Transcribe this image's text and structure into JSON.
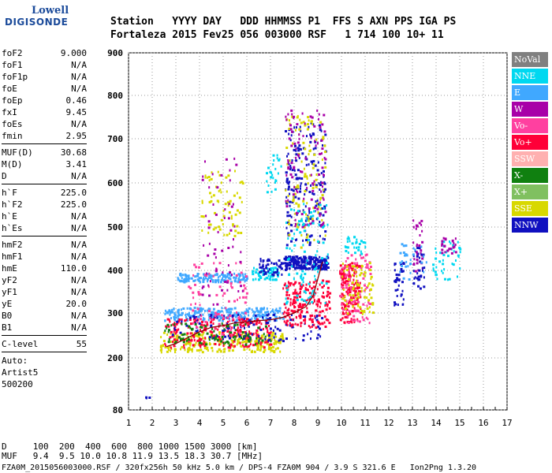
{
  "logo": {
    "line1": "Lowell",
    "line2": "DIGISONDE"
  },
  "header": {
    "labels": "Station   YYYY DAY   DDD HHMMSS P1  FFS S AXN PPS IGA PS",
    "values": "Fortaleza 2015 Fev25 056 003000 RSF   1 714 100 10+ 11"
  },
  "params": [
    {
      "name": "foF2",
      "value": "9.000"
    },
    {
      "name": "foF1",
      "value": "N/A"
    },
    {
      "name": "foF1p",
      "value": "N/A"
    },
    {
      "name": "foE",
      "value": "N/A"
    },
    {
      "name": "foEp",
      "value": "0.46"
    },
    {
      "name": "fxI",
      "value": "9.45"
    },
    {
      "name": "foEs",
      "value": "N/A"
    },
    {
      "name": "fmin",
      "value": "2.95"
    },
    {
      "sep": true
    },
    {
      "name": "MUF(D)",
      "value": "30.68"
    },
    {
      "name": "M(D)",
      "value": "3.41"
    },
    {
      "name": "D",
      "value": "N/A"
    },
    {
      "sep": true
    },
    {
      "name": "h`F",
      "value": "225.0"
    },
    {
      "name": "h`F2",
      "value": "225.0"
    },
    {
      "name": "h`E",
      "value": "N/A"
    },
    {
      "name": "h`Es",
      "value": "N/A"
    },
    {
      "sep": true
    },
    {
      "name": "hmF2",
      "value": "N/A"
    },
    {
      "name": "hmF1",
      "value": "N/A"
    },
    {
      "name": "hmE",
      "value": "110.0"
    },
    {
      "name": "yF2",
      "value": "N/A"
    },
    {
      "name": "yF1",
      "value": "N/A"
    },
    {
      "name": "yE",
      "value": "20.0"
    },
    {
      "name": "B0",
      "value": "N/A"
    },
    {
      "name": "B1",
      "value": "N/A"
    },
    {
      "sep": true
    },
    {
      "name": "C-level",
      "value": "55"
    },
    {
      "sep": true
    }
  ],
  "auto": {
    "label": "Auto:",
    "artist": "Artist5",
    "code": "500200"
  },
  "bottom": {
    "d_line": "D     100  200  400  600  800 1000 1500 3000 [km]",
    "muf_line": "MUF   9.4  9.5 10.0 10.8 11.9 13.5 18.3 30.7 [MHz]",
    "footer": "FZA0M_2015056003000.RSF / 320fx256h 50 kHz 5.0 km / DPS-4 FZA0M 904 / 3.9 S 321.6 E   Ion2Png 1.3.20"
  },
  "legend": [
    {
      "label": "NoVal",
      "color": "#808080"
    },
    {
      "label": "NNE",
      "color": "#00d8f0"
    },
    {
      "label": "E",
      "color": "#40a8ff"
    },
    {
      "label": "W",
      "color": "#a800a8"
    },
    {
      "label": "Vo-",
      "color": "#ff40a0"
    },
    {
      "label": "Vo+",
      "color": "#ff0038"
    },
    {
      "label": "SSW",
      "color": "#ffb0b0"
    },
    {
      "label": "X-",
      "color": "#108010"
    },
    {
      "label": "X+",
      "color": "#80c060"
    },
    {
      "label": "SSE",
      "color": "#d8d800"
    },
    {
      "label": "NNW",
      "color": "#1010c0"
    }
  ],
  "chart_data": {
    "type": "scatter",
    "xlim": [
      1,
      17
    ],
    "ylim": [
      80,
      900
    ],
    "x_ticks": [
      "1",
      "2",
      "3",
      "4",
      "5",
      "6",
      "7",
      "8",
      "9",
      "10",
      "11",
      "12",
      "13",
      "14",
      "15",
      "16",
      "17"
    ],
    "y_ticks": [
      {
        "label": "900",
        "v": 900
      },
      {
        "label": "800",
        "v": 800
      },
      {
        "label": "700",
        "v": 700
      },
      {
        "label": "600",
        "v": 600
      },
      {
        "label": "500",
        "v": 500
      },
      {
        "label": "400",
        "v": 400
      },
      {
        "label": "300",
        "v": 300
      },
      {
        "label": "200",
        "v": 200
      },
      {
        "label": "80",
        "v": 80
      }
    ],
    "grid": "dotted",
    "trace": {
      "name": "autoscaled trace",
      "color": "#8b0000",
      "x": [
        2.6,
        3.0,
        3.5,
        4.0,
        4.5,
        5.0,
        5.5,
        6.0,
        6.5,
        7.0,
        7.5,
        8.0,
        8.5,
        8.8,
        9.0,
        9.2
      ],
      "y": [
        225,
        232,
        245,
        258,
        268,
        272,
        278,
        280,
        283,
        285,
        290,
        300,
        315,
        340,
        380,
        420
      ]
    },
    "clusters": [
      {
        "series": "SSE",
        "x": [
          2.3,
          7.5
        ],
        "y": [
          215,
          260
        ],
        "n": 260
      },
      {
        "series": "E",
        "x": [
          2.5,
          7.5
        ],
        "y": [
          285,
          315
        ],
        "n": 240
      },
      {
        "series": "E",
        "x": [
          3.0,
          6.0
        ],
        "y": [
          375,
          395
        ],
        "n": 150
      },
      {
        "series": "Vo+",
        "x": [
          2.5,
          7.0
        ],
        "y": [
          225,
          290
        ],
        "n": 220
      },
      {
        "series": "NNW",
        "x": [
          2.8,
          9.2
        ],
        "y": [
          240,
          300
        ],
        "n": 120
      },
      {
        "series": "X-",
        "x": [
          2.5,
          7.0
        ],
        "y": [
          230,
          280
        ],
        "n": 90
      },
      {
        "series": "Vo-",
        "x": [
          3.5,
          6.0
        ],
        "y": [
          250,
          420
        ],
        "n": 90
      },
      {
        "series": "SSE",
        "x": [
          4.0,
          5.8
        ],
        "y": [
          480,
          630
        ],
        "n": 70
      },
      {
        "series": "W",
        "x": [
          4.0,
          5.8
        ],
        "y": [
          320,
          660
        ],
        "n": 60
      },
      {
        "series": "NNE",
        "x": [
          6.2,
          7.3
        ],
        "y": [
          380,
          410
        ],
        "n": 70
      },
      {
        "series": "NNW",
        "x": [
          6.5,
          7.6
        ],
        "y": [
          390,
          430
        ],
        "n": 50
      },
      {
        "series": "NNE",
        "x": [
          6.8,
          7.5
        ],
        "y": [
          580,
          670
        ],
        "n": 25
      },
      {
        "series": "NNW",
        "x": [
          7.6,
          9.4
        ],
        "y": [
          405,
          435
        ],
        "n": 220
      },
      {
        "series": "NNW",
        "x": [
          7.6,
          9.3
        ],
        "y": [
          460,
          740
        ],
        "n": 180
      },
      {
        "series": "SSE",
        "x": [
          7.6,
          9.3
        ],
        "y": [
          450,
          760
        ],
        "n": 110
      },
      {
        "series": "W",
        "x": [
          7.6,
          9.3
        ],
        "y": [
          500,
          770
        ],
        "n": 110
      },
      {
        "series": "Vo+",
        "x": [
          7.5,
          9.5
        ],
        "y": [
          270,
          380
        ],
        "n": 200
      },
      {
        "series": "NNE",
        "x": [
          7.6,
          9.4
        ],
        "y": [
          320,
          560
        ],
        "n": 100
      },
      {
        "series": "Vo+",
        "x": [
          9.9,
          10.8
        ],
        "y": [
          280,
          420
        ],
        "n": 160
      },
      {
        "series": "Vo-",
        "x": [
          9.9,
          11.2
        ],
        "y": [
          280,
          440
        ],
        "n": 100
      },
      {
        "series": "SSE",
        "x": [
          10.0,
          11.3
        ],
        "y": [
          300,
          420
        ],
        "n": 80
      },
      {
        "series": "NNE",
        "x": [
          10.1,
          11.0
        ],
        "y": [
          440,
          480
        ],
        "n": 30
      },
      {
        "series": "NNW",
        "x": [
          12.2,
          12.6
        ],
        "y": [
          320,
          420
        ],
        "n": 35
      },
      {
        "series": "W",
        "x": [
          13.0,
          13.4
        ],
        "y": [
          400,
          520
        ],
        "n": 35
      },
      {
        "series": "NNW",
        "x": [
          13.0,
          13.5
        ],
        "y": [
          360,
          460
        ],
        "n": 30
      },
      {
        "series": "NNE",
        "x": [
          13.8,
          15.0
        ],
        "y": [
          380,
          470
        ],
        "n": 45
      },
      {
        "series": "E",
        "x": [
          12.3,
          13.6
        ],
        "y": [
          380,
          470
        ],
        "n": 30
      },
      {
        "series": "W",
        "x": [
          14.2,
          14.8
        ],
        "y": [
          440,
          480
        ],
        "n": 25
      },
      {
        "series": "NNW",
        "x": [
          1.7,
          1.9
        ],
        "y": [
          110,
          112
        ],
        "n": 3
      }
    ]
  }
}
